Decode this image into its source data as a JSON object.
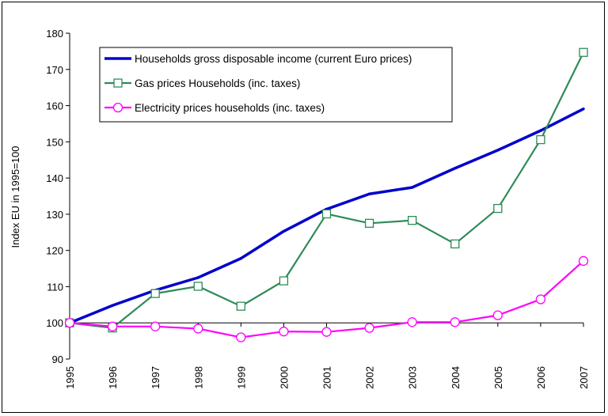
{
  "chart_data": {
    "type": "line",
    "title": "",
    "xlabel": "",
    "ylabel": "Index EU in 1995=100",
    "ylim": [
      90,
      180
    ],
    "yticks": [
      "90",
      "100",
      "110",
      "120",
      "130",
      "140",
      "150",
      "160",
      "170",
      "180"
    ],
    "x": [
      "1995",
      "1996",
      "1997",
      "1998",
      "1999",
      "2000",
      "2001",
      "2002",
      "2003",
      "2004",
      "2005",
      "2006",
      "2007"
    ],
    "grid": false,
    "baseline": 100,
    "legend_position": "top-left",
    "series": [
      {
        "name": "Households gross disposable income (current Euro prices)",
        "color": "#0000cc",
        "marker": "none",
        "values": [
          100,
          104.8,
          109,
          112.5,
          117.8,
          125.3,
          131.4,
          135.6,
          137.4,
          142.7,
          147.7,
          153.1,
          159.1
        ]
      },
      {
        "name": "Gas prices Households (inc. taxes)",
        "color": "#2e8b57",
        "marker": "square",
        "values": [
          100,
          98.6,
          108.1,
          110.1,
          104.6,
          111.6,
          130.1,
          127.5,
          128.3,
          121.8,
          131.6,
          150.6,
          174.7
        ]
      },
      {
        "name": "Electricity prices households (inc. taxes)",
        "color": "#ff00ff",
        "marker": "circle",
        "values": [
          100,
          99,
          99,
          98.4,
          96,
          97.6,
          97.5,
          98.6,
          100.2,
          100.2,
          102.1,
          106.5,
          117.1
        ]
      }
    ]
  }
}
